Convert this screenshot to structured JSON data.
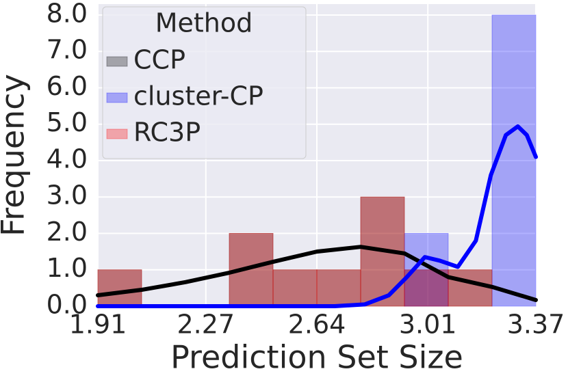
{
  "chart_data": {
    "type": "histogram",
    "x_label": "Prediction Set Size",
    "y_label": "Frequency",
    "legend_title": "Method",
    "legend_position": "upper left",
    "grid": true,
    "alpha": 0.3,
    "bins": [
      1.91,
      2.056,
      2.202,
      2.348,
      2.494,
      2.64,
      2.786,
      2.932,
      3.078,
      3.224,
      3.37
    ],
    "xlim": [
      1.91,
      3.37
    ],
    "xticks": [
      1.91,
      2.27,
      2.64,
      3.01,
      3.37
    ],
    "ylim": [
      0,
      8.3
    ],
    "yticks": [
      {
        "value": 0,
        "label": "0.0"
      },
      {
        "value": 1,
        "label": "1.0"
      },
      {
        "value": 2,
        "label": "2.0"
      },
      {
        "value": 3,
        "label": "3.0"
      },
      {
        "value": 4,
        "label": "4.0"
      },
      {
        "value": 5,
        "label": "5.0"
      },
      {
        "value": 6,
        "label": "6.0"
      },
      {
        "value": 7,
        "label": "7.0"
      },
      {
        "value": 8,
        "label": "8.0"
      }
    ],
    "series": [
      {
        "name": "CCP",
        "color": "#000000",
        "values": [
          1,
          0,
          0,
          2,
          1,
          1,
          3,
          1,
          1,
          0
        ],
        "kde_x": [
          1.91,
          2.056,
          2.202,
          2.348,
          2.494,
          2.64,
          2.786,
          2.932,
          3.078,
          3.224,
          3.37
        ],
        "kde_values": [
          0.3,
          0.45,
          0.66,
          0.92,
          1.22,
          1.5,
          1.63,
          1.45,
          0.8,
          0.53,
          0.17
        ]
      },
      {
        "name": "cluster-CP",
        "color": "#0000ff",
        "values": [
          0,
          0,
          0,
          0,
          0,
          0,
          0,
          2,
          0,
          8
        ],
        "kde_x": [
          1.91,
          2.7,
          2.8,
          2.88,
          2.94,
          3.0,
          3.05,
          3.11,
          3.17,
          3.22,
          3.27,
          3.31,
          3.34,
          3.37
        ],
        "kde_values": [
          0,
          0,
          0.05,
          0.3,
          0.8,
          1.35,
          1.25,
          1.08,
          1.8,
          3.6,
          4.7,
          4.94,
          4.7,
          4.1
        ]
      },
      {
        "name": "RC3P",
        "color": "#ff0000",
        "values": [
          1,
          0,
          0,
          2,
          1,
          1,
          3,
          1,
          1,
          0
        ]
      }
    ]
  }
}
